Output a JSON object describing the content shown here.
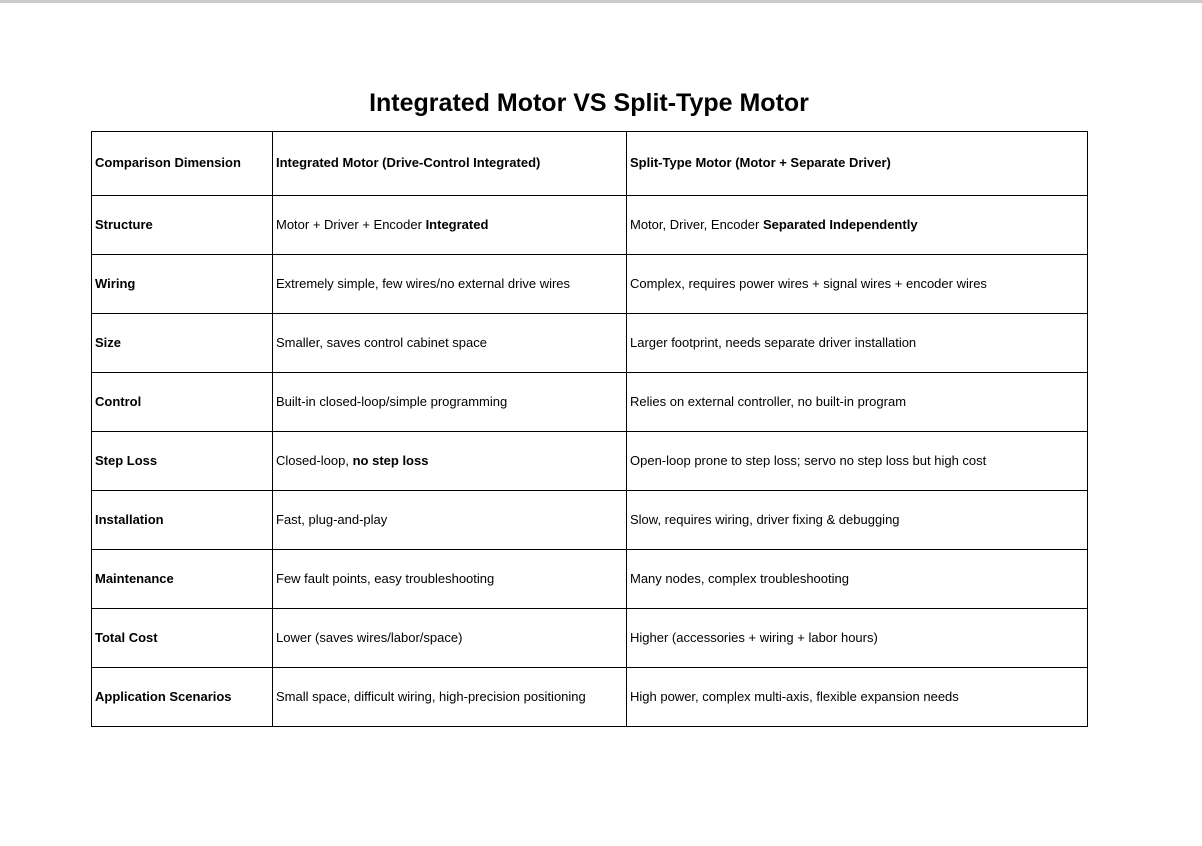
{
  "page": {
    "title": "Integrated Motor VS Split-Type Motor",
    "top_edge_color": "#cbcbcb",
    "border_color": "#000000",
    "text_color": "#000000"
  },
  "table": {
    "headers": [
      "Comparison Dimension",
      "Integrated Motor (Drive-Control Integrated)",
      "Split-Type Motor (Motor + Separate Driver)"
    ],
    "rows": [
      {
        "dimension": "Structure",
        "integrated": [
          {
            "text": "Motor + Driver + Encoder ",
            "bold": false
          },
          {
            "text": "Integrated",
            "bold": true
          }
        ],
        "split": [
          {
            "text": "Motor, Driver, Encoder ",
            "bold": false
          },
          {
            "text": "Separated Independently",
            "bold": true
          }
        ]
      },
      {
        "dimension": "Wiring",
        "integrated": [
          {
            "text": "Extremely simple, few wires/no external drive wires",
            "bold": false
          }
        ],
        "split": [
          {
            "text": "Complex, requires power wires + signal wires + encoder wires",
            "bold": false
          }
        ]
      },
      {
        "dimension": "Size",
        "integrated": [
          {
            "text": "Smaller, saves control cabinet space",
            "bold": false
          }
        ],
        "split": [
          {
            "text": "Larger footprint, needs separate driver installation",
            "bold": false
          }
        ]
      },
      {
        "dimension": "Control",
        "integrated": [
          {
            "text": "Built-in closed-loop/simple programming",
            "bold": false
          }
        ],
        "split": [
          {
            "text": "Relies on external controller, no built-in program",
            "bold": false
          }
        ]
      },
      {
        "dimension": "Step Loss",
        "integrated": [
          {
            "text": "Closed-loop, ",
            "bold": false
          },
          {
            "text": "no step loss",
            "bold": true
          }
        ],
        "split": [
          {
            "text": "Open-loop prone to step loss; servo no step loss but high cost",
            "bold": false
          }
        ]
      },
      {
        "dimension": "Installation",
        "integrated": [
          {
            "text": "Fast, plug-and-play",
            "bold": false
          }
        ],
        "split": [
          {
            "text": "Slow, requires wiring, driver fixing & debugging",
            "bold": false
          }
        ]
      },
      {
        "dimension": "Maintenance",
        "integrated": [
          {
            "text": "Few fault points, easy troubleshooting",
            "bold": false
          }
        ],
        "split": [
          {
            "text": "Many nodes, complex troubleshooting",
            "bold": false
          }
        ]
      },
      {
        "dimension": "Total Cost",
        "integrated": [
          {
            "text": "Lower (saves wires/labor/space)",
            "bold": false
          }
        ],
        "split": [
          {
            "text": "Higher (accessories + wiring + labor hours)",
            "bold": false
          }
        ]
      },
      {
        "dimension": "Application Scenarios",
        "integrated": [
          {
            "text": "Small space, difficult wiring, high-precision positioning",
            "bold": false
          }
        ],
        "split": [
          {
            "text": "High power, complex multi-axis, flexible expansion needs",
            "bold": false
          }
        ]
      }
    ]
  }
}
